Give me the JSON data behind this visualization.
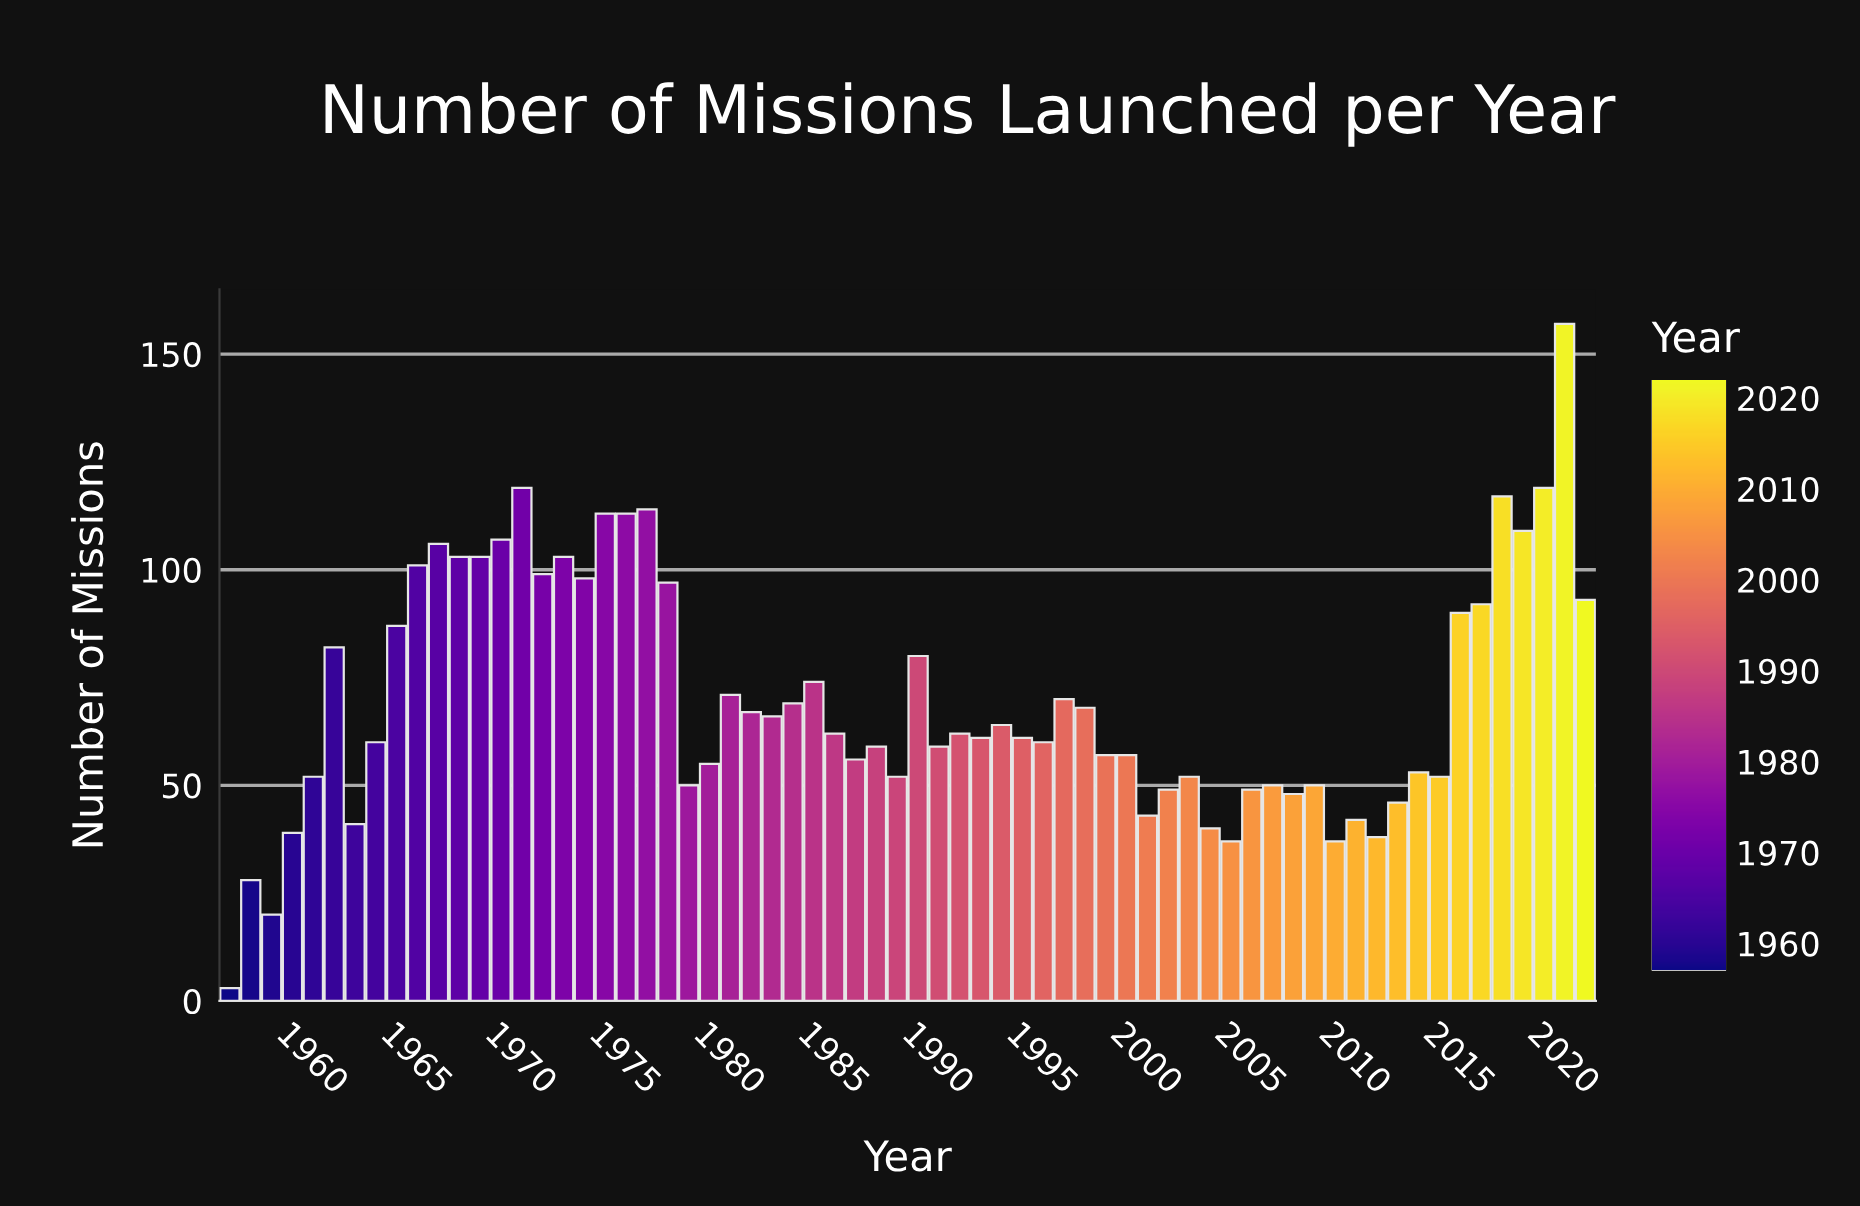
{
  "chart_data": {
    "type": "bar",
    "title": "Number of Missions Launched per Year",
    "xlabel": "Year",
    "ylabel": "Number of Missions",
    "clabel": "Year",
    "x": [
      1957,
      1958,
      1959,
      1960,
      1961,
      1962,
      1963,
      1964,
      1965,
      1966,
      1967,
      1968,
      1969,
      1970,
      1971,
      1972,
      1973,
      1974,
      1975,
      1976,
      1977,
      1978,
      1979,
      1980,
      1981,
      1982,
      1983,
      1984,
      1985,
      1986,
      1987,
      1988,
      1989,
      1990,
      1991,
      1992,
      1993,
      1994,
      1995,
      1996,
      1997,
      1998,
      1999,
      2000,
      2001,
      2002,
      2003,
      2004,
      2005,
      2006,
      2007,
      2008,
      2009,
      2010,
      2011,
      2012,
      2013,
      2014,
      2015,
      2016,
      2017,
      2018,
      2019,
      2020,
      2021,
      2022
    ],
    "values": [
      3,
      28,
      20,
      39,
      52,
      82,
      41,
      60,
      87,
      101,
      106,
      103,
      103,
      107,
      119,
      99,
      103,
      98,
      113,
      113,
      114,
      97,
      50,
      55,
      71,
      67,
      66,
      69,
      74,
      62,
      56,
      59,
      52,
      80,
      59,
      62,
      61,
      64,
      61,
      60,
      70,
      68,
      57,
      57,
      43,
      49,
      52,
      40,
      37,
      49,
      50,
      48,
      50,
      37,
      42,
      38,
      46,
      53,
      52,
      90,
      92,
      117,
      109,
      119,
      157,
      93
    ],
    "cvalues": [
      1957,
      1958,
      1959,
      1960,
      1961,
      1962,
      1963,
      1964,
      1965,
      1966,
      1967,
      1968,
      1969,
      1970,
      1971,
      1972,
      1973,
      1974,
      1975,
      1976,
      1977,
      1978,
      1979,
      1980,
      1981,
      1982,
      1983,
      1984,
      1985,
      1986,
      1987,
      1988,
      1989,
      1990,
      1991,
      1992,
      1993,
      1994,
      1995,
      1996,
      1997,
      1998,
      1999,
      2000,
      2001,
      2002,
      2003,
      2004,
      2005,
      2006,
      2007,
      2008,
      2009,
      2010,
      2011,
      2012,
      2013,
      2014,
      2015,
      2016,
      2017,
      2018,
      2019,
      2020,
      2021,
      2022
    ],
    "clim": [
      1957,
      2022
    ],
    "cticks": [
      1960,
      1970,
      1980,
      1990,
      2000,
      2010,
      2020
    ],
    "xlim": [
      1956.5,
      2022.5
    ],
    "xticks": [
      1960,
      1965,
      1970,
      1975,
      1980,
      1985,
      1990,
      1995,
      2000,
      2005,
      2010,
      2015,
      2020
    ],
    "ylim": [
      0,
      165
    ],
    "yticks": [
      0,
      50,
      100,
      150
    ],
    "grid": "y"
  }
}
